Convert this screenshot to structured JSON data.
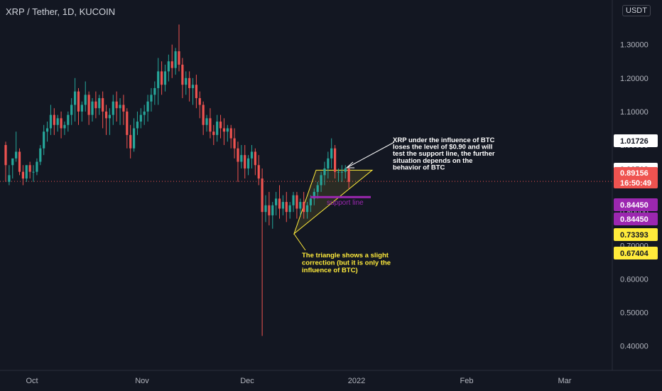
{
  "header": {
    "title": "XRP / Tether, 1D, KUCOIN",
    "currency": "USDT"
  },
  "colors": {
    "background": "#131722",
    "up": "#26a69a",
    "down": "#ef5350",
    "grid": "#1e222d",
    "axis_text": "#b2b5be",
    "annotation_yellow": "#ffeb3b",
    "annotation_white": "#ffffff",
    "support_purple": "#9c27b0"
  },
  "chart_data": {
    "type": "candlestick",
    "symbol": "XRP / Tether",
    "interval": "1D",
    "exchange": "KUCOIN",
    "y_axis": {
      "ticks": [
        1.3,
        1.2,
        1.1,
        1.0,
        0.9,
        0.8,
        0.7,
        0.6,
        0.5,
        0.4
      ],
      "tick_labels": [
        "1.30000",
        "1.20000",
        "1.10000",
        "1.00000",
        "0.90000",
        "0.80000",
        "0.70000",
        "0.60000",
        "0.50000",
        "0.40000"
      ],
      "ylim": [
        0.35,
        1.4
      ]
    },
    "x_axis": {
      "labels": [
        "Oct",
        "Nov",
        "Dec",
        "2022",
        "Feb",
        "Mar"
      ]
    },
    "candles": [
      [
        1.0,
        1.01,
        0.94,
        0.89
      ],
      [
        0.89,
        0.94,
        0.91,
        0.88
      ],
      [
        0.94,
        0.95,
        0.96,
        0.9
      ],
      [
        0.96,
        1.04,
        0.98,
        0.95
      ],
      [
        0.98,
        0.99,
        0.92,
        0.91
      ],
      [
        0.92,
        0.94,
        0.9,
        0.88
      ],
      [
        0.9,
        0.93,
        0.94,
        0.89
      ],
      [
        0.94,
        0.95,
        0.92,
        0.9
      ],
      [
        0.92,
        0.94,
        0.92,
        0.89
      ],
      [
        0.92,
        0.96,
        0.95,
        0.91
      ],
      [
        0.95,
        1.0,
        0.99,
        0.94
      ],
      [
        0.99,
        1.06,
        1.04,
        0.97
      ],
      [
        1.04,
        1.07,
        1.05,
        1.01
      ],
      [
        1.05,
        1.12,
        1.09,
        1.03
      ],
      [
        1.09,
        1.11,
        1.06,
        1.03
      ],
      [
        1.06,
        1.09,
        1.08,
        1.04
      ],
      [
        1.08,
        1.1,
        1.05,
        1.02
      ],
      [
        1.05,
        1.07,
        1.06,
        1.03
      ],
      [
        1.06,
        1.1,
        1.09,
        1.04
      ],
      [
        1.09,
        1.14,
        1.12,
        1.06
      ],
      [
        1.12,
        1.2,
        1.16,
        1.07
      ],
      [
        1.16,
        1.17,
        1.1,
        1.06
      ],
      [
        1.1,
        1.13,
        1.12,
        1.07
      ],
      [
        1.12,
        1.19,
        1.15,
        1.1
      ],
      [
        1.15,
        1.16,
        1.09,
        1.06
      ],
      [
        1.09,
        1.14,
        1.13,
        1.07
      ],
      [
        1.13,
        1.16,
        1.11,
        1.08
      ],
      [
        1.11,
        1.15,
        1.14,
        1.09
      ],
      [
        1.14,
        1.16,
        1.1,
        1.05
      ],
      [
        1.1,
        1.12,
        1.08,
        1.03
      ],
      [
        1.08,
        1.11,
        1.09,
        1.03
      ],
      [
        1.09,
        1.15,
        1.13,
        1.06
      ],
      [
        1.13,
        1.16,
        1.11,
        1.07
      ],
      [
        1.11,
        1.14,
        1.12,
        1.06
      ],
      [
        1.12,
        1.15,
        1.1,
        1.06
      ],
      [
        1.1,
        1.11,
        1.03,
        0.99
      ],
      [
        1.03,
        1.06,
        0.99,
        0.96
      ],
      [
        0.99,
        1.08,
        1.05,
        0.98
      ],
      [
        1.05,
        1.1,
        1.07,
        1.03
      ],
      [
        1.07,
        1.11,
        1.09,
        1.05
      ],
      [
        1.09,
        1.12,
        1.1,
        1.06
      ],
      [
        1.1,
        1.15,
        1.13,
        1.07
      ],
      [
        1.13,
        1.17,
        1.15,
        1.1
      ],
      [
        1.15,
        1.19,
        1.17,
        1.12
      ],
      [
        1.17,
        1.26,
        1.22,
        1.12
      ],
      [
        1.22,
        1.25,
        1.18,
        1.15
      ],
      [
        1.18,
        1.24,
        1.22,
        1.16
      ],
      [
        1.22,
        1.27,
        1.25,
        1.19
      ],
      [
        1.25,
        1.3,
        1.23,
        1.2
      ],
      [
        1.23,
        1.29,
        1.28,
        1.21
      ],
      [
        1.28,
        1.36,
        1.24,
        1.22
      ],
      [
        1.24,
        1.26,
        1.18,
        1.14
      ],
      [
        1.18,
        1.22,
        1.2,
        1.15
      ],
      [
        1.2,
        1.22,
        1.17,
        1.13
      ],
      [
        1.17,
        1.2,
        1.18,
        1.12
      ],
      [
        1.18,
        1.21,
        1.14,
        1.11
      ],
      [
        1.14,
        1.16,
        1.12,
        1.08
      ],
      [
        1.12,
        1.13,
        1.06,
        1.03
      ],
      [
        1.06,
        1.09,
        1.08,
        1.04
      ],
      [
        1.08,
        1.11,
        1.04,
        1.02
      ],
      [
        1.04,
        1.06,
        1.03,
        1.0
      ],
      [
        1.03,
        1.09,
        1.07,
        1.01
      ],
      [
        1.07,
        1.09,
        1.05,
        1.02
      ],
      [
        1.05,
        1.08,
        1.04,
        1.0
      ],
      [
        1.04,
        1.06,
        1.05,
        1.01
      ],
      [
        1.05,
        1.06,
        1.02,
        0.99
      ],
      [
        1.02,
        1.05,
        0.99,
        0.96
      ],
      [
        0.99,
        1.01,
        0.95,
        0.89
      ],
      [
        0.95,
        1.0,
        0.97,
        0.93
      ],
      [
        0.97,
        1.0,
        0.93,
        0.9
      ],
      [
        0.93,
        0.97,
        0.96,
        0.91
      ],
      [
        0.96,
        1.0,
        0.98,
        0.93
      ],
      [
        0.98,
        0.99,
        0.94,
        0.91
      ],
      [
        0.94,
        0.97,
        0.9,
        0.88
      ],
      [
        0.9,
        0.93,
        0.8,
        0.43
      ],
      [
        0.8,
        0.85,
        0.82,
        0.77
      ],
      [
        0.82,
        0.86,
        0.79,
        0.76
      ],
      [
        0.79,
        0.83,
        0.82,
        0.75
      ],
      [
        0.82,
        0.86,
        0.84,
        0.79
      ],
      [
        0.84,
        0.88,
        0.81,
        0.78
      ],
      [
        0.81,
        0.85,
        0.83,
        0.79
      ],
      [
        0.83,
        0.86,
        0.8,
        0.77
      ],
      [
        0.8,
        0.83,
        0.82,
        0.78
      ],
      [
        0.82,
        0.86,
        0.85,
        0.8
      ],
      [
        0.85,
        0.86,
        0.81,
        0.78
      ],
      [
        0.81,
        0.84,
        0.83,
        0.79
      ],
      [
        0.83,
        0.86,
        0.8,
        0.78
      ],
      [
        0.8,
        0.83,
        0.82,
        0.78
      ],
      [
        0.82,
        0.85,
        0.84,
        0.8
      ],
      [
        0.84,
        0.87,
        0.86,
        0.82
      ],
      [
        0.86,
        0.89,
        0.88,
        0.84
      ],
      [
        0.88,
        0.92,
        0.91,
        0.86
      ],
      [
        0.91,
        0.95,
        0.93,
        0.88
      ],
      [
        0.93,
        0.98,
        0.96,
        0.9
      ],
      [
        0.96,
        1.02,
        0.99,
        0.93
      ],
      [
        0.99,
        1.0,
        0.92,
        0.9
      ],
      [
        0.92,
        0.93,
        0.92,
        0.89
      ],
      [
        0.92,
        0.94,
        0.92,
        0.89
      ],
      [
        0.92,
        0.94,
        0.93,
        0.9
      ],
      [
        0.93,
        0.93,
        0.89,
        0.87
      ]
    ],
    "last_close": 0.89156,
    "price_labels": [
      {
        "text": "1.01726",
        "bg": "#ffffff",
        "fg": "#131722"
      },
      {
        "text": "0.92512",
        "bg": "#ffffff",
        "fg": "#131722"
      },
      {
        "text": "0.89156",
        "bg": "#ef5350",
        "fg": "#ffffff",
        "sub": "16:50:49"
      },
      {
        "text": "0.84450",
        "bg": "#9c27b0",
        "fg": "#ffffff"
      },
      {
        "text": "0.84450",
        "bg": "#9c27b0",
        "fg": "#ffffff"
      },
      {
        "text": "0.73393",
        "bg": "#ffeb3b",
        "fg": "#131722"
      },
      {
        "text": "0.67404",
        "bg": "#ffeb3b",
        "fg": "#131722"
      }
    ],
    "annotations": {
      "btc_note": [
        "XRP under the influence of BTC",
        "loses the level of $0.90 and will",
        "test the support line, the further",
        "situation depends on the",
        "behavior of BTC"
      ],
      "triangle_note": [
        "The triangle shows a slight",
        "correction (but it is only the",
        "influence of BTC)"
      ],
      "support_label": "support line",
      "support_level": 0.8445
    }
  }
}
